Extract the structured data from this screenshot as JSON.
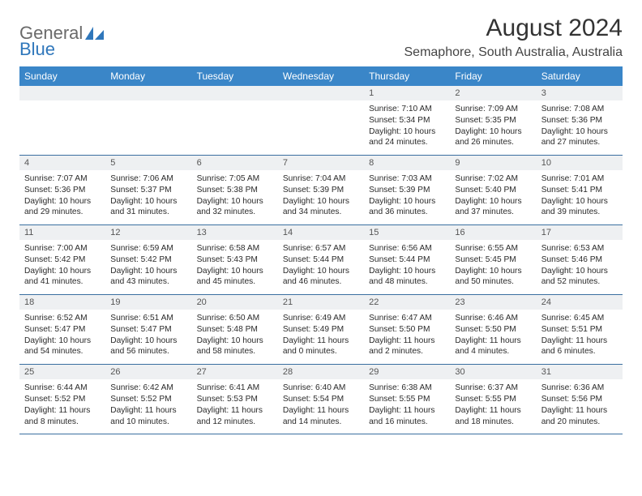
{
  "brand": {
    "part1": "General",
    "part2": "Blue"
  },
  "title": "August 2024",
  "subtitle": "Semaphore, South Australia, Australia",
  "colors": {
    "header_bg": "#3a86c8",
    "daynum_bg": "#eef0f2",
    "rule": "#3a6fa0",
    "brand_blue": "#2f77bb",
    "text": "#222222"
  },
  "weekdays": [
    "Sunday",
    "Monday",
    "Tuesday",
    "Wednesday",
    "Thursday",
    "Friday",
    "Saturday"
  ],
  "weeks": [
    {
      "nums": [
        "",
        "",
        "",
        "",
        "1",
        "2",
        "3"
      ],
      "cells": [
        null,
        null,
        null,
        null,
        {
          "sunrise": "Sunrise: 7:10 AM",
          "sunset": "Sunset: 5:34 PM",
          "day1": "Daylight: 10 hours",
          "day2": "and 24 minutes."
        },
        {
          "sunrise": "Sunrise: 7:09 AM",
          "sunset": "Sunset: 5:35 PM",
          "day1": "Daylight: 10 hours",
          "day2": "and 26 minutes."
        },
        {
          "sunrise": "Sunrise: 7:08 AM",
          "sunset": "Sunset: 5:36 PM",
          "day1": "Daylight: 10 hours",
          "day2": "and 27 minutes."
        }
      ]
    },
    {
      "nums": [
        "4",
        "5",
        "6",
        "7",
        "8",
        "9",
        "10"
      ],
      "cells": [
        {
          "sunrise": "Sunrise: 7:07 AM",
          "sunset": "Sunset: 5:36 PM",
          "day1": "Daylight: 10 hours",
          "day2": "and 29 minutes."
        },
        {
          "sunrise": "Sunrise: 7:06 AM",
          "sunset": "Sunset: 5:37 PM",
          "day1": "Daylight: 10 hours",
          "day2": "and 31 minutes."
        },
        {
          "sunrise": "Sunrise: 7:05 AM",
          "sunset": "Sunset: 5:38 PM",
          "day1": "Daylight: 10 hours",
          "day2": "and 32 minutes."
        },
        {
          "sunrise": "Sunrise: 7:04 AM",
          "sunset": "Sunset: 5:39 PM",
          "day1": "Daylight: 10 hours",
          "day2": "and 34 minutes."
        },
        {
          "sunrise": "Sunrise: 7:03 AM",
          "sunset": "Sunset: 5:39 PM",
          "day1": "Daylight: 10 hours",
          "day2": "and 36 minutes."
        },
        {
          "sunrise": "Sunrise: 7:02 AM",
          "sunset": "Sunset: 5:40 PM",
          "day1": "Daylight: 10 hours",
          "day2": "and 37 minutes."
        },
        {
          "sunrise": "Sunrise: 7:01 AM",
          "sunset": "Sunset: 5:41 PM",
          "day1": "Daylight: 10 hours",
          "day2": "and 39 minutes."
        }
      ]
    },
    {
      "nums": [
        "11",
        "12",
        "13",
        "14",
        "15",
        "16",
        "17"
      ],
      "cells": [
        {
          "sunrise": "Sunrise: 7:00 AM",
          "sunset": "Sunset: 5:42 PM",
          "day1": "Daylight: 10 hours",
          "day2": "and 41 minutes."
        },
        {
          "sunrise": "Sunrise: 6:59 AM",
          "sunset": "Sunset: 5:42 PM",
          "day1": "Daylight: 10 hours",
          "day2": "and 43 minutes."
        },
        {
          "sunrise": "Sunrise: 6:58 AM",
          "sunset": "Sunset: 5:43 PM",
          "day1": "Daylight: 10 hours",
          "day2": "and 45 minutes."
        },
        {
          "sunrise": "Sunrise: 6:57 AM",
          "sunset": "Sunset: 5:44 PM",
          "day1": "Daylight: 10 hours",
          "day2": "and 46 minutes."
        },
        {
          "sunrise": "Sunrise: 6:56 AM",
          "sunset": "Sunset: 5:44 PM",
          "day1": "Daylight: 10 hours",
          "day2": "and 48 minutes."
        },
        {
          "sunrise": "Sunrise: 6:55 AM",
          "sunset": "Sunset: 5:45 PM",
          "day1": "Daylight: 10 hours",
          "day2": "and 50 minutes."
        },
        {
          "sunrise": "Sunrise: 6:53 AM",
          "sunset": "Sunset: 5:46 PM",
          "day1": "Daylight: 10 hours",
          "day2": "and 52 minutes."
        }
      ]
    },
    {
      "nums": [
        "18",
        "19",
        "20",
        "21",
        "22",
        "23",
        "24"
      ],
      "cells": [
        {
          "sunrise": "Sunrise: 6:52 AM",
          "sunset": "Sunset: 5:47 PM",
          "day1": "Daylight: 10 hours",
          "day2": "and 54 minutes."
        },
        {
          "sunrise": "Sunrise: 6:51 AM",
          "sunset": "Sunset: 5:47 PM",
          "day1": "Daylight: 10 hours",
          "day2": "and 56 minutes."
        },
        {
          "sunrise": "Sunrise: 6:50 AM",
          "sunset": "Sunset: 5:48 PM",
          "day1": "Daylight: 10 hours",
          "day2": "and 58 minutes."
        },
        {
          "sunrise": "Sunrise: 6:49 AM",
          "sunset": "Sunset: 5:49 PM",
          "day1": "Daylight: 11 hours",
          "day2": "and 0 minutes."
        },
        {
          "sunrise": "Sunrise: 6:47 AM",
          "sunset": "Sunset: 5:50 PM",
          "day1": "Daylight: 11 hours",
          "day2": "and 2 minutes."
        },
        {
          "sunrise": "Sunrise: 6:46 AM",
          "sunset": "Sunset: 5:50 PM",
          "day1": "Daylight: 11 hours",
          "day2": "and 4 minutes."
        },
        {
          "sunrise": "Sunrise: 6:45 AM",
          "sunset": "Sunset: 5:51 PM",
          "day1": "Daylight: 11 hours",
          "day2": "and 6 minutes."
        }
      ]
    },
    {
      "nums": [
        "25",
        "26",
        "27",
        "28",
        "29",
        "30",
        "31"
      ],
      "cells": [
        {
          "sunrise": "Sunrise: 6:44 AM",
          "sunset": "Sunset: 5:52 PM",
          "day1": "Daylight: 11 hours",
          "day2": "and 8 minutes."
        },
        {
          "sunrise": "Sunrise: 6:42 AM",
          "sunset": "Sunset: 5:52 PM",
          "day1": "Daylight: 11 hours",
          "day2": "and 10 minutes."
        },
        {
          "sunrise": "Sunrise: 6:41 AM",
          "sunset": "Sunset: 5:53 PM",
          "day1": "Daylight: 11 hours",
          "day2": "and 12 minutes."
        },
        {
          "sunrise": "Sunrise: 6:40 AM",
          "sunset": "Sunset: 5:54 PM",
          "day1": "Daylight: 11 hours",
          "day2": "and 14 minutes."
        },
        {
          "sunrise": "Sunrise: 6:38 AM",
          "sunset": "Sunset: 5:55 PM",
          "day1": "Daylight: 11 hours",
          "day2": "and 16 minutes."
        },
        {
          "sunrise": "Sunrise: 6:37 AM",
          "sunset": "Sunset: 5:55 PM",
          "day1": "Daylight: 11 hours",
          "day2": "and 18 minutes."
        },
        {
          "sunrise": "Sunrise: 6:36 AM",
          "sunset": "Sunset: 5:56 PM",
          "day1": "Daylight: 11 hours",
          "day2": "and 20 minutes."
        }
      ]
    }
  ]
}
